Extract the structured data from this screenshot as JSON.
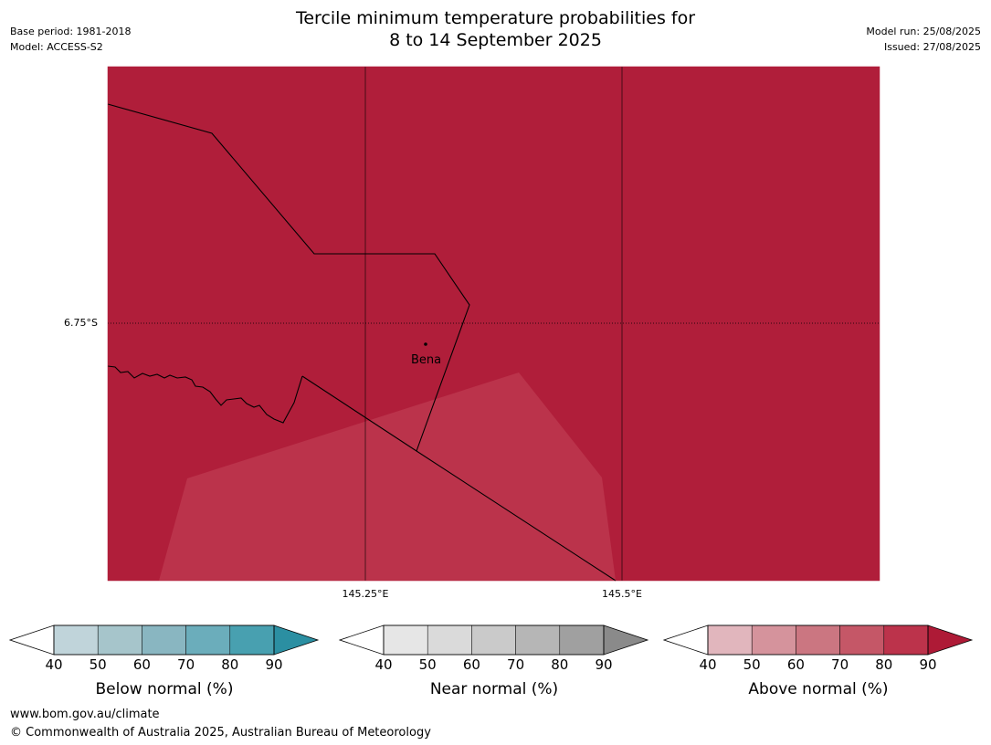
{
  "title_line1": "Tercile minimum temperature probabilities for",
  "title_line2": "8 to 14 September 2025",
  "base_period": "Base period: 1981-2018",
  "model": "Model: ACCESS-S2",
  "model_run": "Model run: 25/08/2025",
  "issued": "Issued: 27/08/2025",
  "map": {
    "lat_label": "6.75°S",
    "lon_labels": [
      "145.25°E",
      "145.5°E"
    ],
    "place": "Bena",
    "background_color": "#b01e3a",
    "patch_color": "#bb334b"
  },
  "colorbars": [
    {
      "caption": "Below normal (%)",
      "ticks": [
        "40",
        "50",
        "60",
        "70",
        "80",
        "90"
      ],
      "colors": [
        "#c0d4da",
        "#a6c5cb",
        "#89b6c1",
        "#6badbb",
        "#48a0b0",
        "#2b8fa2"
      ]
    },
    {
      "caption": "Near normal (%)",
      "ticks": [
        "40",
        "50",
        "60",
        "70",
        "80",
        "90"
      ],
      "colors": [
        "#e6e6e6",
        "#dadada",
        "#cacaca",
        "#b6b6b6",
        "#a0a0a0",
        "#8a8a8a"
      ]
    },
    {
      "caption": "Above normal (%)",
      "ticks": [
        "40",
        "50",
        "60",
        "70",
        "80",
        "90"
      ],
      "colors": [
        "#e1b6bd",
        "#d5939c",
        "#cb7681",
        "#c55767",
        "#bc334b",
        "#ae1a36"
      ]
    }
  ],
  "footer_url": "www.bom.gov.au/climate",
  "footer_copyright": "© Commonwealth of Australia 2025, Australian Bureau of Meteorology"
}
